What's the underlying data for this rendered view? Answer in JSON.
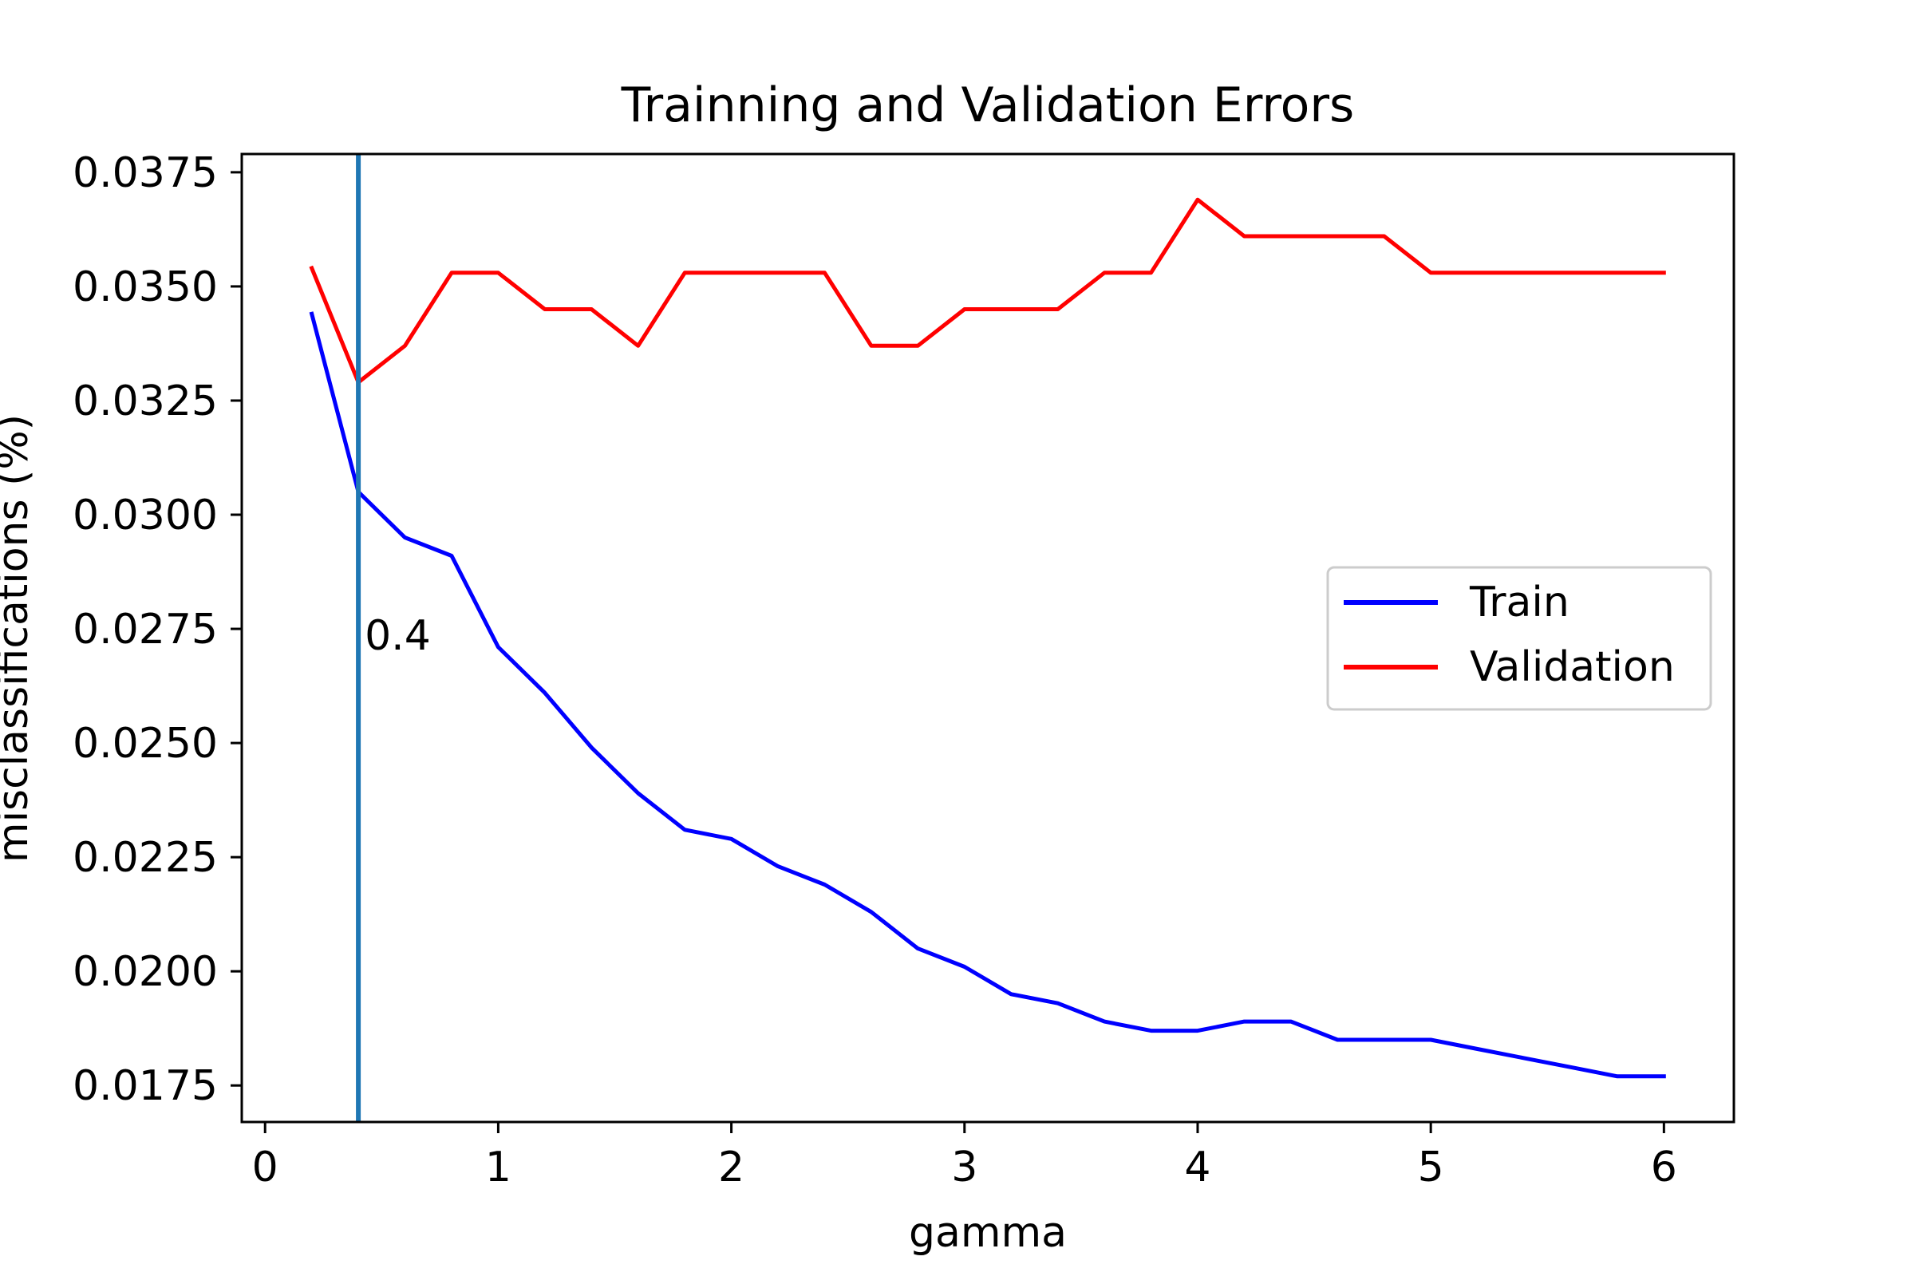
{
  "chart_data": {
    "type": "line",
    "title": "Trainning and Validation Errors",
    "xlabel": "gamma",
    "ylabel": "misclassifications (%)",
    "xlim": [
      -0.1,
      6.3
    ],
    "ylim": [
      0.0167,
      0.0379
    ],
    "xticks": [
      0,
      1,
      2,
      3,
      4,
      5,
      6
    ],
    "xtick_labels": [
      "0",
      "1",
      "2",
      "3",
      "4",
      "5",
      "6"
    ],
    "yticks": [
      0.0175,
      0.02,
      0.0225,
      0.025,
      0.0275,
      0.03,
      0.0325,
      0.035,
      0.0375
    ],
    "ytick_labels": [
      "0.0175",
      "0.0200",
      "0.0225",
      "0.0250",
      "0.0275",
      "0.0300",
      "0.0325",
      "0.0350",
      "0.0375"
    ],
    "grid": false,
    "legend_position": "right",
    "x": [
      0.2,
      0.4,
      0.6,
      0.8,
      1.0,
      1.2,
      1.4,
      1.6,
      1.8,
      2.0,
      2.2,
      2.4,
      2.6,
      2.8,
      3.0,
      3.2,
      3.4,
      3.6,
      3.8,
      4.0,
      4.2,
      4.4,
      4.6,
      4.8,
      5.0,
      5.2,
      5.4,
      5.6,
      5.8,
      6.0
    ],
    "series": [
      {
        "name": "Train",
        "color": "#0000ff",
        "values": [
          0.0344,
          0.0305,
          0.0295,
          0.0291,
          0.0271,
          0.0261,
          0.0249,
          0.0239,
          0.0231,
          0.0229,
          0.0223,
          0.0219,
          0.0213,
          0.0205,
          0.0201,
          0.0195,
          0.0193,
          0.0189,
          0.0187,
          0.0187,
          0.0189,
          0.0189,
          0.0185,
          0.0185,
          0.0185,
          0.0183,
          0.0181,
          0.0179,
          0.0177,
          0.0177
        ]
      },
      {
        "name": "Validation",
        "color": "#ff0000",
        "values": [
          0.0354,
          0.0329,
          0.0337,
          0.0353,
          0.0353,
          0.0345,
          0.0345,
          0.0337,
          0.0353,
          0.0353,
          0.0353,
          0.0353,
          0.0337,
          0.0337,
          0.0345,
          0.0345,
          0.0345,
          0.0353,
          0.0353,
          0.0369,
          0.0361,
          0.0361,
          0.0361,
          0.0361,
          0.0353,
          0.0353,
          0.0353,
          0.0353,
          0.0353,
          0.0353
        ]
      }
    ],
    "vline": {
      "x": 0.4,
      "color": "#1f77b4",
      "label": "0.4"
    },
    "text_color": "#000000"
  }
}
